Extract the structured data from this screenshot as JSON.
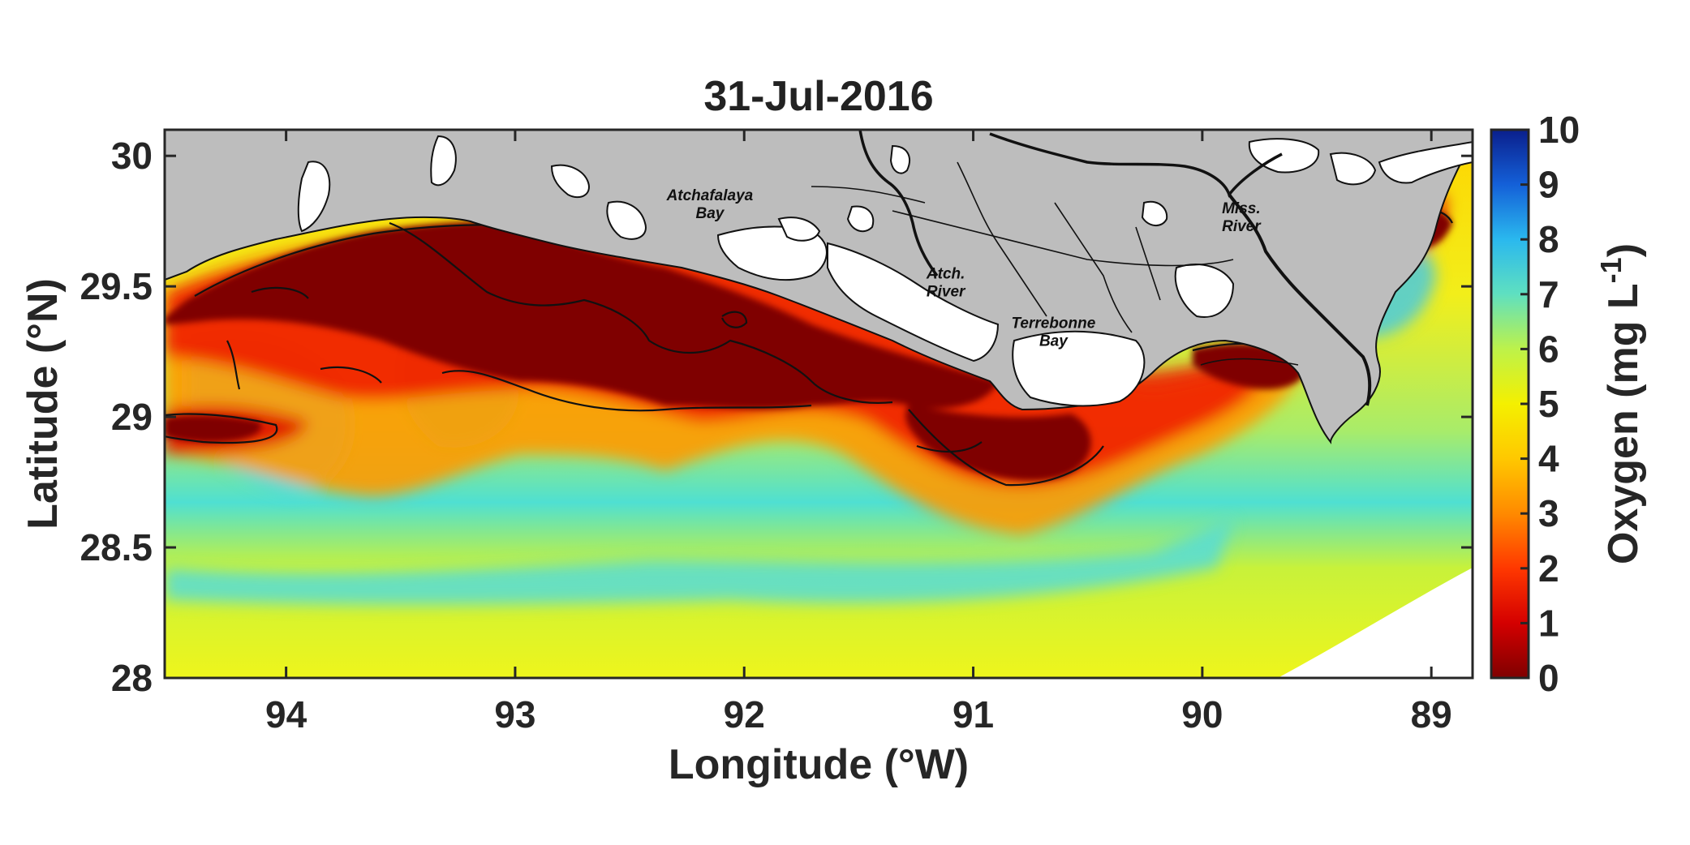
{
  "title": "31-Jul-2016",
  "x_axis": {
    "label": "Longitude (°W)",
    "ticks": [
      "94",
      "93",
      "92",
      "91",
      "90",
      "89"
    ],
    "tick_values": [
      94,
      93,
      92,
      91,
      90,
      89
    ],
    "range": [
      94.53,
      88.82
    ]
  },
  "y_axis": {
    "label": "Latitude (°N)",
    "ticks": [
      "30",
      "29.5",
      "29",
      "28.5",
      "28"
    ],
    "tick_values": [
      30,
      29.5,
      29,
      28.5,
      28
    ],
    "range": [
      28,
      30.1
    ]
  },
  "colorbar": {
    "label_main": "Oxygen (mg L",
    "label_sup": "-1",
    "label_close": ")",
    "ticks": [
      "10",
      "9",
      "8",
      "7",
      "6",
      "5",
      "4",
      "3",
      "2",
      "1",
      "0"
    ],
    "range": [
      0,
      10
    ],
    "colormap": [
      "#7f0000",
      "#d40000",
      "#ff3800",
      "#ff8a00",
      "#ffc800",
      "#f4f000",
      "#bdf24a",
      "#5fe0c0",
      "#2ab8ee",
      "#1460d8",
      "#0a1f8c"
    ]
  },
  "places": [
    {
      "id": "atchafalaya-bay",
      "lines": [
        "Atchafalaya",
        "Bay"
      ],
      "lon": 92.15,
      "lat": 29.83
    },
    {
      "id": "atch-river",
      "lines": [
        "Atch.",
        "River"
      ],
      "lon": 91.12,
      "lat": 29.53
    },
    {
      "id": "terrebonne-bay",
      "lines": [
        "Terrebonne",
        "Bay"
      ],
      "lon": 90.65,
      "lat": 29.34
    },
    {
      "id": "miss-river",
      "lines": [
        "Miss.",
        "River"
      ],
      "lon": 89.83,
      "lat": 29.78
    }
  ],
  "colors": {
    "land": "#bdbdbd",
    "inland_water": "#ffffff",
    "hypoxic_core": "#7f0000",
    "offshore_band": "#e9f31f"
  }
}
